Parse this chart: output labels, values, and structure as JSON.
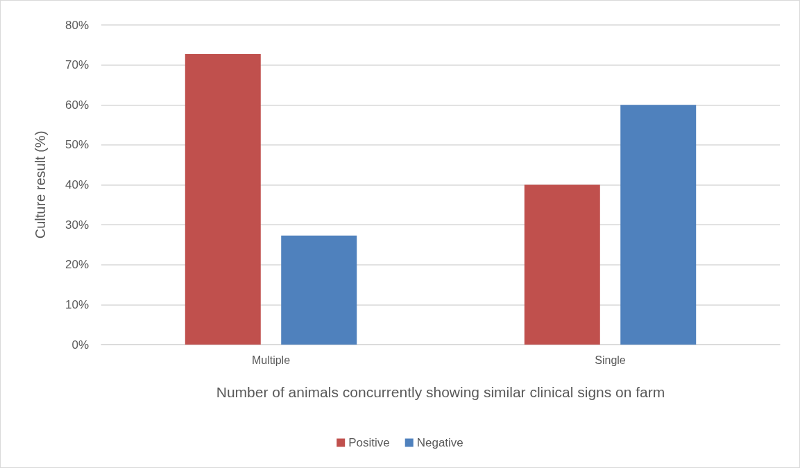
{
  "chart_data": {
    "type": "bar",
    "xlabel": "Number of animals concurrently showing similar clinical signs on farm",
    "ylabel": "Culture result (%)",
    "categories": [
      "Multiple",
      "Single"
    ],
    "series": [
      {
        "name": "Positive",
        "color": "#c0504d",
        "values": [
          72.7,
          40
        ]
      },
      {
        "name": "Negative",
        "color": "#4f81bd",
        "values": [
          27.3,
          60
        ]
      }
    ],
    "ylim": [
      0,
      80
    ],
    "yticks": [
      {
        "value": 0,
        "label": "0%"
      },
      {
        "value": 10,
        "label": "10%"
      },
      {
        "value": 20,
        "label": "20%"
      },
      {
        "value": 30,
        "label": "30%"
      },
      {
        "value": 40,
        "label": "40%"
      },
      {
        "value": 50,
        "label": "50%"
      },
      {
        "value": 60,
        "label": "60%"
      },
      {
        "value": 70,
        "label": "70%"
      },
      {
        "value": 80,
        "label": "80%"
      }
    ],
    "grid": "y",
    "legend": "bottom"
  }
}
